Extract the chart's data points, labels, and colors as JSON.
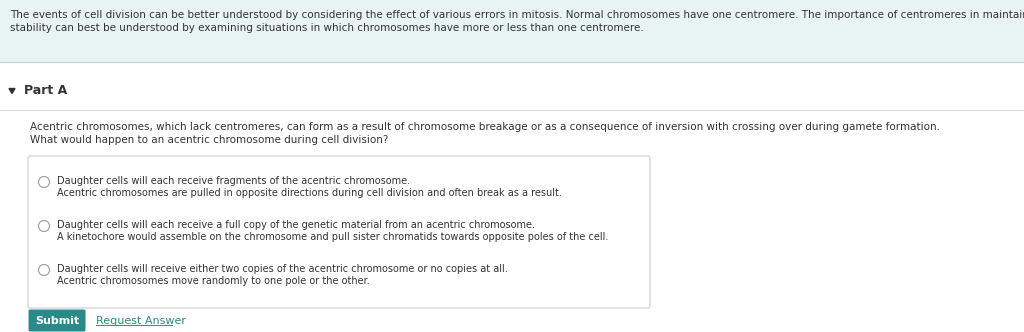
{
  "bg_color": "#ffffff",
  "header_bg": "#e8f4f4",
  "header_line1": "The events of cell division can be better understood by considering the effect of various errors in mitosis. Normal chromosomes have one centromere. The importance of centromeres in maintaining genomic",
  "header_line2": "stability can best be understood by examining situations in which chromosomes have more or less than one centromere.",
  "header_text_color": "#333333",
  "header_font_size": 7.5,
  "section_label": "Part A",
  "triangle_color": "#333333",
  "question_line1": "Acentric chromosomes, which lack centromeres, can form as a result of chromosome breakage or as a consequence of inversion with crossing over during gamete formation.",
  "question_line2": "What would happen to an acentric chromosome during cell division?",
  "question_font_size": 7.5,
  "options": [
    [
      "Daughter cells will each receive fragments of the acentric chromosome.",
      "Acentric chromosomes are pulled in opposite directions during cell division and often break as a result."
    ],
    [
      "Daughter cells will each receive a full copy of the genetic material from an acentric chromosome.",
      "A kinetochore would assemble on the chromosome and pull sister chromatids towards opposite poles of the cell."
    ],
    [
      "Daughter cells will receive either two copies of the acentric chromosome or no copies at all.",
      "Acentric chromosomes move randomly to one pole or the other."
    ]
  ],
  "option_font_size": 7.0,
  "options_box_color": "#ffffff",
  "options_border_color": "#cccccc",
  "radio_color": "#999999",
  "submit_bg": "#2a8a8a",
  "submit_text": "Submit",
  "submit_text_color": "#ffffff",
  "submit_font_size": 8,
  "request_text": "Request Answer",
  "request_text_color": "#2a8a8a",
  "request_font_size": 8,
  "divider_color": "#cccccc",
  "part_font_size": 9,
  "header_border_color": "#c0d8d8"
}
